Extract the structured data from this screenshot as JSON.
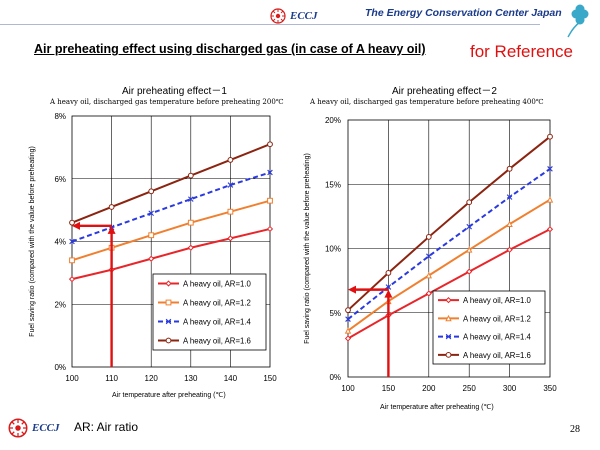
{
  "header": {
    "logo_text": "ECCJ",
    "org_name": "The Energy Conservation Center Japan"
  },
  "title": "Air preheating effect using discharged gas (in case of A heavy oil)",
  "reference_label": "for Reference",
  "footer": {
    "logo_text": "ECCJ",
    "note": "AR: Air ratio",
    "page_number": "28"
  },
  "colors": {
    "ar10": "#e8262a",
    "ar12": "#f08030",
    "ar14": "#2a3ae0",
    "ar16": "#8b2410",
    "guide": "#e01010",
    "brand": "#1a3a8a"
  },
  "chart_data": [
    {
      "type": "line",
      "title": "Air preheating effect－1",
      "subtitle": "A heavy oil, discharged gas temperature before preheating 200℃",
      "xlabel": "Air temperature after preheating (℃)",
      "ylabel": "Fuel saving ratio (compared with the value before preheating)",
      "xlim": [
        100,
        150
      ],
      "ylim": [
        0,
        8
      ],
      "x_ticks": [
        "100",
        "110",
        "120",
        "130",
        "140",
        "150"
      ],
      "y_ticks": [
        "0%",
        "2%",
        "4%",
        "6%",
        "8%"
      ],
      "x": [
        100,
        110,
        120,
        130,
        140,
        150
      ],
      "legend_position": "bottom-right",
      "grid": true,
      "series": [
        {
          "name": "A heavy oil, AR=1.0",
          "marker": "diamond",
          "values": [
            2.8,
            3.1,
            3.45,
            3.8,
            4.1,
            4.4
          ]
        },
        {
          "name": "A heavy oil, AR=1.2",
          "marker": "square",
          "values": [
            3.4,
            3.8,
            4.2,
            4.6,
            4.95,
            5.3
          ]
        },
        {
          "name": "A heavy oil, AR=1.4",
          "marker": "x",
          "values": [
            4.0,
            4.45,
            4.9,
            5.35,
            5.8,
            6.2
          ]
        },
        {
          "name": "A heavy oil, AR=1.6",
          "marker": "circle",
          "values": [
            4.6,
            5.1,
            5.6,
            6.1,
            6.6,
            7.1
          ]
        }
      ],
      "guide": {
        "x": 110,
        "y": 4.5
      }
    },
    {
      "type": "line",
      "title": "Air preheating effect－2",
      "subtitle": "A heavy oil, discharged gas temperature before preheating 400℃",
      "xlabel": "Air temperature after preheating (℃)",
      "ylabel": "Fuel saving ratio (compared with the value before preheating)",
      "xlim": [
        100,
        350
      ],
      "ylim": [
        0,
        20
      ],
      "x_ticks": [
        "100",
        "150",
        "200",
        "250",
        "300",
        "350"
      ],
      "y_ticks": [
        "0%",
        "5%",
        "10%",
        "15%",
        "20%"
      ],
      "x": [
        100,
        150,
        200,
        250,
        300,
        350
      ],
      "legend_position": "bottom-right",
      "grid": true,
      "series": [
        {
          "name": "A heavy oil, AR=1.0",
          "marker": "diamond",
          "values": [
            3.0,
            4.8,
            6.5,
            8.2,
            9.9,
            11.5
          ]
        },
        {
          "name": "A heavy oil, AR=1.2",
          "marker": "triangle",
          "values": [
            3.6,
            5.9,
            7.9,
            9.9,
            11.9,
            13.8
          ]
        },
        {
          "name": "A heavy oil, AR=1.4",
          "marker": "x",
          "values": [
            4.5,
            7.0,
            9.4,
            11.7,
            14.0,
            16.2
          ]
        },
        {
          "name": "A heavy oil, AR=1.6",
          "marker": "circle",
          "values": [
            5.2,
            8.1,
            10.9,
            13.6,
            16.2,
            18.7
          ]
        }
      ],
      "guide": {
        "x": 150,
        "y": 6.8
      }
    }
  ]
}
